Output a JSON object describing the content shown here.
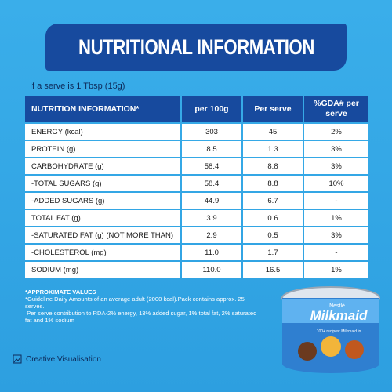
{
  "header": {
    "title": "NUTRITIONAL INFORMATION",
    "serve_note": "If a serve is 1 Tbsp (15g)"
  },
  "table": {
    "headers": [
      "NUTRITION INFORMATION*",
      "per 100g",
      "Per serve",
      "%GDA# per serve"
    ],
    "rows": [
      [
        "ENERGY (kcal)",
        "303",
        "45",
        "2%"
      ],
      [
        "PROTEIN (g)",
        "8.5",
        "1.3",
        "3%"
      ],
      [
        "CARBOHYDRATE (g)",
        "58.4",
        "8.8",
        "3%"
      ],
      [
        "-TOTAL SUGARS (g)",
        "58.4",
        "8.8",
        "10%"
      ],
      [
        "-ADDED SUGARS (g)",
        "44.9",
        "6.7",
        "-"
      ],
      [
        "TOTAL FAT (g)",
        "3.9",
        "0.6",
        "1%"
      ],
      [
        "-SATURATED FAT (g) (NOT MORE THAN)",
        "2.9",
        "0.5",
        "3%"
      ],
      [
        "-CHOLESTEROL (mg)",
        "11.0",
        "1.7",
        "-"
      ],
      [
        "SODIUM (mg)",
        "110.0",
        "16.5",
        "1%"
      ]
    ]
  },
  "footnotes": [
    "*APPROXIMATE VALUES",
    "*Guideline Daily Amounts of an average adult (2000 kcal).Pack contains approx. 25 serves.",
    " Per serve contribution to RDA-2% energy, 13% added sugar, 1% total fat, 2% saturated fat and 1% sodium"
  ],
  "product": {
    "maker": "Nestlé",
    "brand": "Milkmaid",
    "recipes_note": "100+ recipes: Milkmaid.in"
  },
  "caption": "Creative Visualisation"
}
